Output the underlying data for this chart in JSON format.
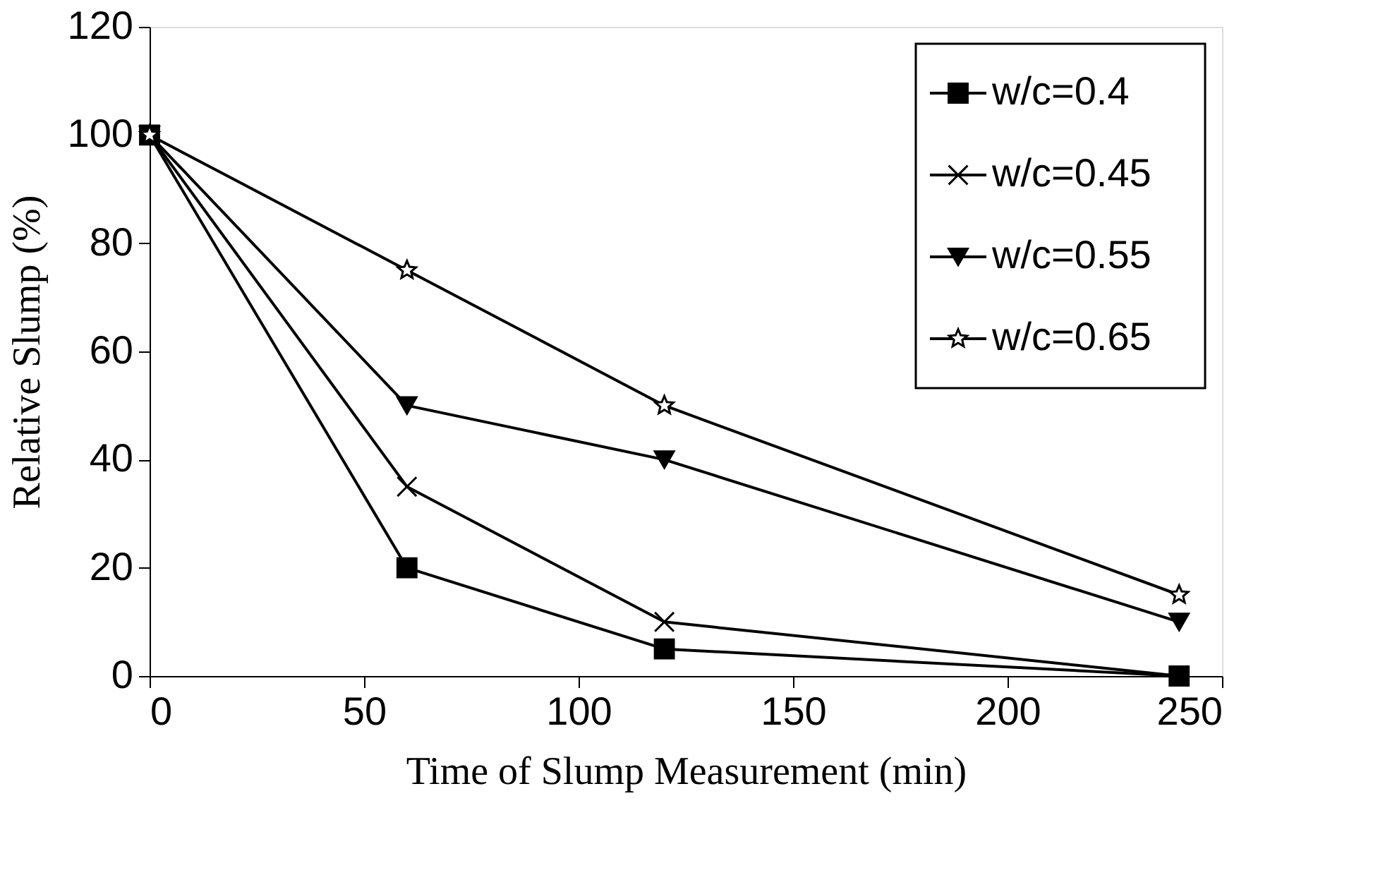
{
  "chart_data": {
    "type": "line",
    "xlabel": "Time of Slump Measurement (min)",
    "ylabel": "Relative Slump (%)",
    "x": [
      0,
      60,
      120,
      240
    ],
    "series": [
      {
        "name": "w/c=0.4",
        "color": "#000000",
        "marker": "square",
        "values": [
          100,
          20,
          5,
          0
        ]
      },
      {
        "name": " w/c=0.45",
        "color": "#000000",
        "marker": "cross",
        "values": [
          100,
          35,
          10,
          0
        ]
      },
      {
        "name": "w/c=0.55",
        "color": "#000000",
        "marker": "triangle",
        "values": [
          100,
          50,
          40,
          10
        ]
      },
      {
        "name": "w/c=0.65",
        "color": "#000000",
        "marker": "star",
        "values": [
          100,
          75,
          50,
          15
        ]
      }
    ],
    "xlim": [
      0,
      250
    ],
    "xticks": [
      0,
      50,
      100,
      150,
      200,
      250
    ],
    "ylim": [
      0,
      120
    ],
    "yticks": [
      0,
      20,
      40,
      60,
      80,
      100,
      120
    ],
    "grid": false,
    "legend": "top right",
    "line_style": "solid"
  }
}
